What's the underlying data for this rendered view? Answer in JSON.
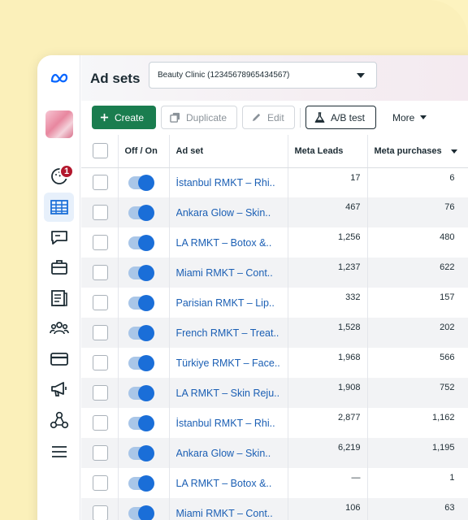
{
  "colors": {
    "background": "#fdf3bf",
    "create_button": "#1a7d4f",
    "link": "#1b5fb4",
    "toggle_knob": "#1a6ed8",
    "notification_badge": "#b3172d"
  },
  "sidebar": {
    "logo": "meta-logo-icon",
    "notification_count": "1",
    "items": [
      {
        "icon": "notifications-icon"
      },
      {
        "icon": "ads-manager-table-icon",
        "active": true
      },
      {
        "icon": "messages-icon"
      },
      {
        "icon": "briefcase-icon"
      },
      {
        "icon": "pages-icon"
      },
      {
        "icon": "audiences-icon"
      },
      {
        "icon": "billing-icon"
      },
      {
        "icon": "megaphone-icon"
      },
      {
        "icon": "events-icon"
      },
      {
        "icon": "menu-icon"
      }
    ]
  },
  "header": {
    "title": "Ad sets",
    "account": "Beauty Clinic (12345678965434567)"
  },
  "toolbar": {
    "create": "Create",
    "duplicate": "Duplicate",
    "edit": "Edit",
    "ab_test": "A/B test",
    "more": "More"
  },
  "table": {
    "columns": {
      "toggle": "Off / On",
      "name": "Ad set",
      "leads": "Meta Leads",
      "purchases": "Meta purchases"
    },
    "rows": [
      {
        "name": "İstanbul RMKT – Rhi..",
        "leads": "17",
        "purchases": "6"
      },
      {
        "name": "Ankara Glow – Skin..",
        "leads": "467",
        "purchases": "76"
      },
      {
        "name": "LA RMKT – Botox &..",
        "leads": "1,256",
        "purchases": "480"
      },
      {
        "name": "Miami RMKT – Cont..",
        "leads": "1,237",
        "purchases": "622"
      },
      {
        "name": "Parisian RMKT – Lip..",
        "leads": "332",
        "purchases": "157"
      },
      {
        "name": "French RMKT – Treat..",
        "leads": "1,528",
        "purchases": "202"
      },
      {
        "name": "Türkiye RMKT – Face..",
        "leads": "1,968",
        "purchases": "566"
      },
      {
        "name": "LA RMKT – Skin Reju..",
        "leads": "1,908",
        "purchases": "752"
      },
      {
        "name": "İstanbul RMKT – Rhi..",
        "leads": "2,877",
        "purchases": "1,162"
      },
      {
        "name": "Ankara Glow – Skin..",
        "leads": "6,219",
        "purchases": "1,195"
      },
      {
        "name": "LA RMKT – Botox &..",
        "leads": "—",
        "purchases": "1"
      },
      {
        "name": "Miami RMKT – Cont..",
        "leads": "106",
        "purchases": "63"
      }
    ]
  }
}
